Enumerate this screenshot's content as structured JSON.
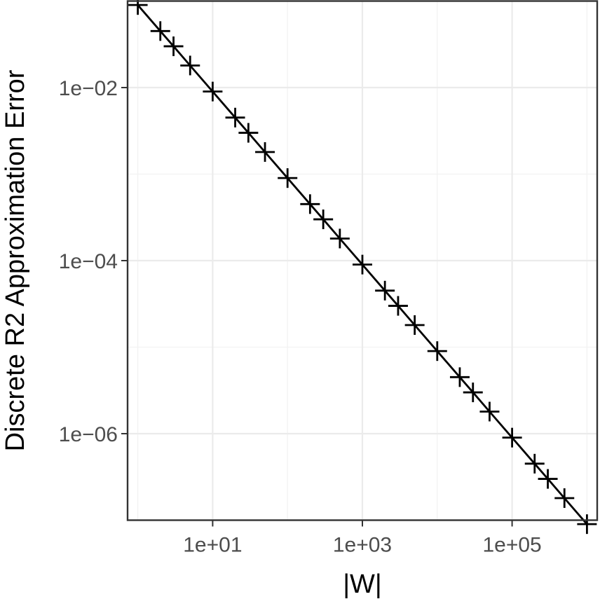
{
  "chart_data": {
    "type": "line",
    "xlabel": "|W|",
    "ylabel": "Discrete R2 Approximation Error",
    "x_scale": "log10",
    "y_scale": "log10",
    "xlim": [
      0.73,
      1370000.0
    ],
    "ylim": [
      1e-07,
      0.1
    ],
    "x_ticks": [
      {
        "value": 10,
        "label": "1e+01"
      },
      {
        "value": 1000,
        "label": "1e+03"
      },
      {
        "value": 100000,
        "label": "1e+05"
      }
    ],
    "y_ticks": [
      {
        "value": 0.01,
        "label": "1e−02"
      },
      {
        "value": 0.0001,
        "label": "1e−04"
      },
      {
        "value": 1e-06,
        "label": "1e−06"
      }
    ],
    "grid": true,
    "legend": "none",
    "series": [
      {
        "marker": "plus",
        "color": "#000000",
        "x": [
          1,
          2,
          3,
          5,
          10,
          20,
          30,
          50,
          100,
          200,
          300,
          500,
          1000,
          2000,
          3000,
          5000,
          10000,
          20000,
          30000,
          50000,
          100000,
          200000,
          300000,
          500000,
          1000000
        ],
        "y": [
          0.09,
          0.045,
          0.03,
          0.018,
          0.009,
          0.0045,
          0.003,
          0.0018,
          0.0009,
          0.00045,
          0.0003,
          0.00018,
          9e-05,
          4.5e-05,
          3e-05,
          1.8e-05,
          9e-06,
          4.5e-06,
          3e-06,
          1.8e-06,
          9e-07,
          4.5e-07,
          3e-07,
          1.8e-07,
          9e-08
        ]
      }
    ]
  }
}
